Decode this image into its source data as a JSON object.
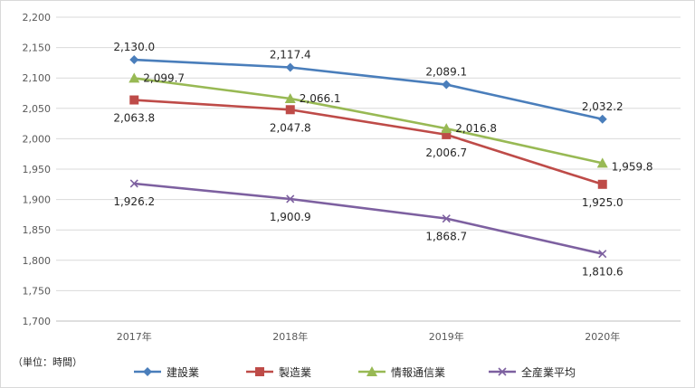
{
  "chart_data": {
    "type": "line",
    "categories": [
      "2017年",
      "2018年",
      "2019年",
      "2020年"
    ],
    "unit_label": "（単位：時間）",
    "ylim": [
      1700,
      2200
    ],
    "yticks": [
      "1,700",
      "1,750",
      "1,800",
      "1,850",
      "1,900",
      "1,950",
      "2,000",
      "2,050",
      "2,100",
      "2,150",
      "2,200"
    ],
    "ytick_values": [
      1700,
      1750,
      1800,
      1850,
      1900,
      1950,
      2000,
      2050,
      2100,
      2150,
      2200
    ],
    "grid": true,
    "legend_position": "bottom",
    "series": [
      {
        "name": "建設業",
        "color": "#4a7ebb",
        "marker": "diamond",
        "values": [
          2130.0,
          2117.4,
          2089.1,
          2032.2
        ],
        "labels": [
          "2,130.0",
          "2,117.4",
          "2,089.1",
          "2,032.2"
        ]
      },
      {
        "name": "製造業",
        "color": "#be4b48",
        "marker": "square",
        "values": [
          2063.8,
          2047.8,
          2006.7,
          1925.0
        ],
        "labels": [
          "2,063.8",
          "2,047.8",
          "2,006.7",
          "1,925.0"
        ]
      },
      {
        "name": "情報通信業",
        "color": "#98b954",
        "marker": "triangle",
        "values": [
          2099.7,
          2066.1,
          2016.8,
          1959.8
        ],
        "labels": [
          "2,099.7",
          "2,066.1",
          "2,016.8",
          "1,959.8"
        ]
      },
      {
        "name": "全産業平均",
        "color": "#7d60a0",
        "marker": "x",
        "values": [
          1926.2,
          1900.9,
          1868.7,
          1810.6
        ],
        "labels": [
          "1,926.2",
          "1,900.9",
          "1,868.7",
          "1,810.6"
        ]
      }
    ]
  }
}
